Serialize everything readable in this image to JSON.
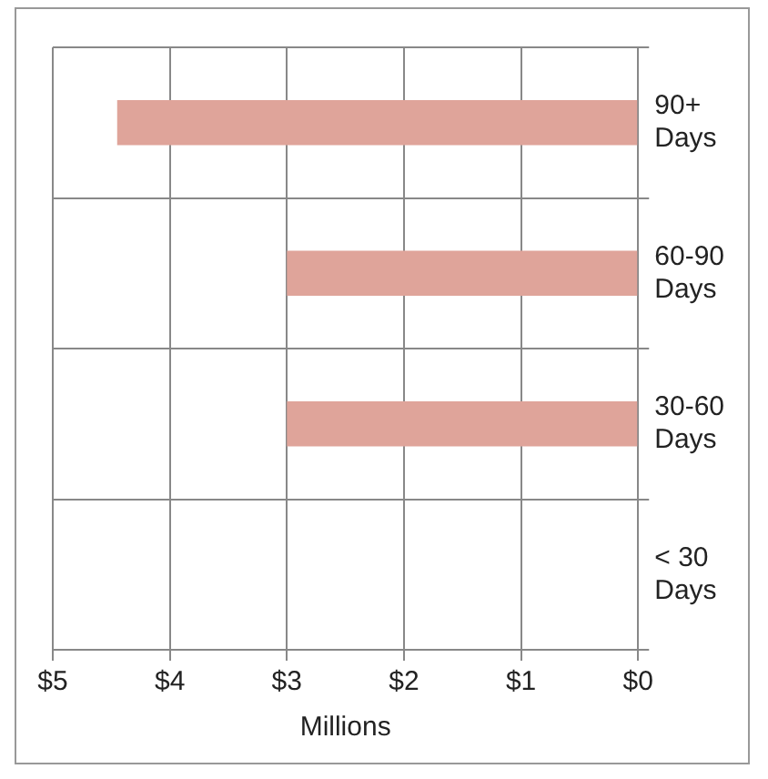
{
  "chart_data": {
    "type": "bar",
    "orientation": "horizontal",
    "categories": [
      "90+ Days",
      "60-90 Days",
      "30-60 Days",
      "< 30 Days"
    ],
    "values": [
      4.45,
      3.0,
      3.0,
      0
    ],
    "color": "#dfa49a",
    "xlabel": "Millions",
    "xlim": [
      5,
      0
    ],
    "xticks": [
      {
        "value": 5,
        "label": "$5"
      },
      {
        "value": 4,
        "label": "$4"
      },
      {
        "value": 3,
        "label": "$3"
      },
      {
        "value": 2,
        "label": "$2"
      },
      {
        "value": 1,
        "label": "$1"
      },
      {
        "value": 0,
        "label": "$0"
      }
    ],
    "grid": true,
    "legend": false
  }
}
